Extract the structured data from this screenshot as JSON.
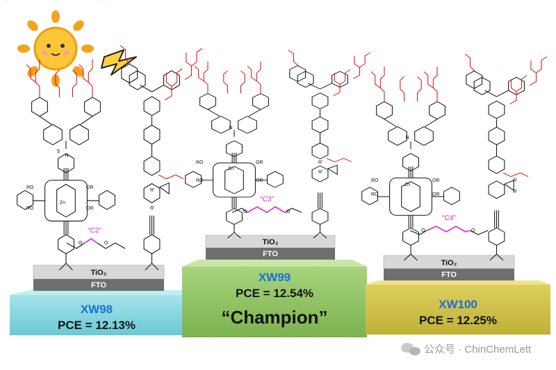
{
  "podiums": [
    {
      "name": "XW98",
      "pce": "PCE = 12.13%",
      "tio2": "TiO₂",
      "fto": "FTO",
      "linker": "“C2”",
      "tag": ""
    },
    {
      "name": "XW99",
      "pce": "PCE = 12.54%",
      "tio2": "TiO₂",
      "fto": "FTO",
      "linker": "“C3”",
      "tag": "“Champion”"
    },
    {
      "name": "XW100",
      "pce": "PCE = 12.25%",
      "tio2": "TiO₂",
      "fto": "FTO",
      "linker": "“C4”",
      "tag": ""
    }
  ],
  "atoms": {
    "zn": "Zn",
    "n": "N",
    "s": "S",
    "ro": "RO",
    "or": "OR",
    "r1": "R'",
    "o": "O"
  },
  "watermark": "公众号 · ChinChemLett",
  "colors": {
    "podium1": "#7fd3dc",
    "podium2": "#8cc063",
    "podium3": "#cfc04a",
    "accent": "#1a6fd6",
    "linker": "#e020e0",
    "chain": "#e01010"
  },
  "icons": {
    "sun": "sun-icon",
    "bolt": "lightning-bolt-icon",
    "wechat": "wechat-icon"
  }
}
